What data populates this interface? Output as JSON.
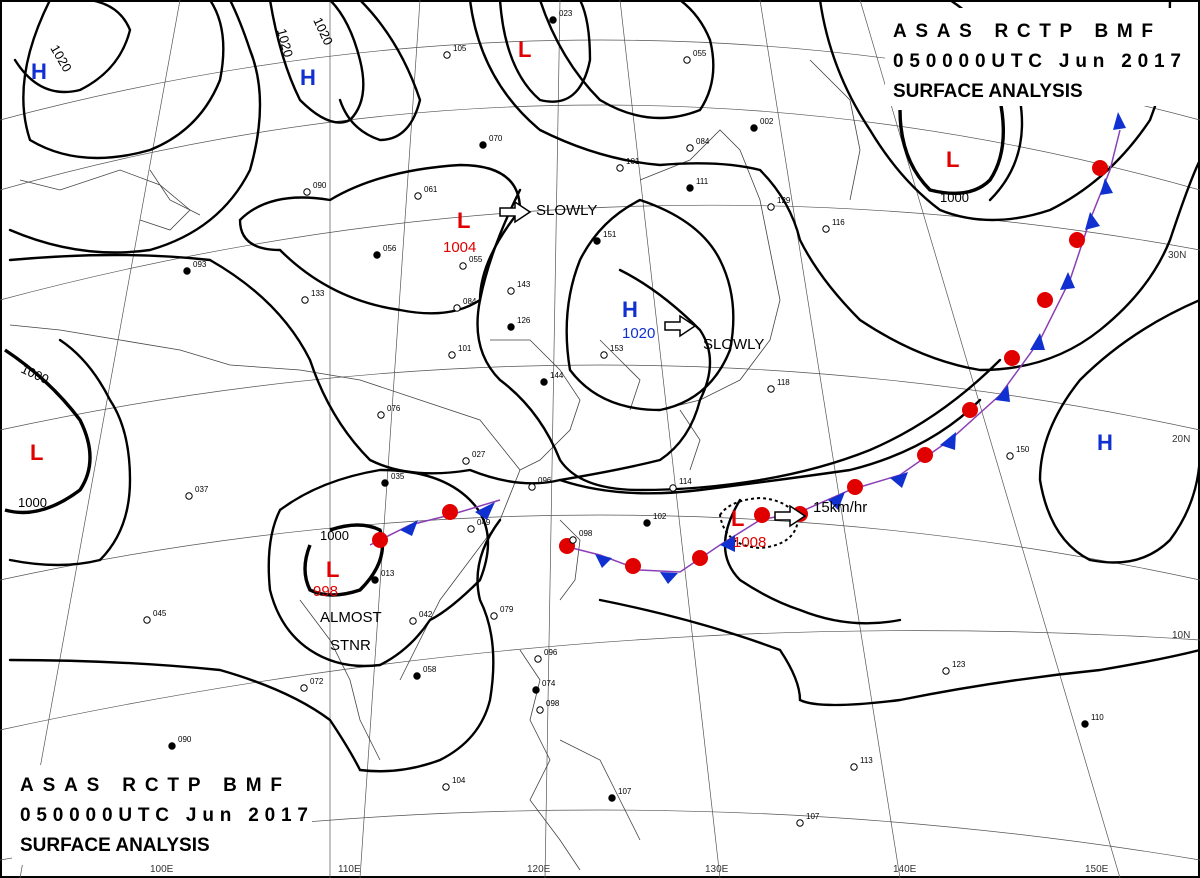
{
  "header_top": {
    "line1": "ASAS RCTP BMF",
    "line2": "050000UTC Jun 2017",
    "line3": "SURFACE ANALYSIS"
  },
  "header_bottom": {
    "line1": "ASAS RCTP BMF",
    "line2": "050000UTC Jun 2017",
    "line3": "SURFACE ANALYSIS"
  },
  "colors": {
    "low": "#e00000",
    "high": "#1030d0",
    "warm_front": "#e00000",
    "cold_front": "#1030d0"
  },
  "isobar_labels": [
    "1020",
    "1020",
    "1020",
    "1000",
    "1000",
    "1000",
    "1000"
  ],
  "lows": [
    {
      "symbol": "L",
      "pressure": ""
    },
    {
      "symbol": "L",
      "pressure": "1004"
    },
    {
      "symbol": "L",
      "pressure": ""
    },
    {
      "symbol": "L",
      "pressure": ""
    },
    {
      "symbol": "L",
      "pressure": "998"
    },
    {
      "symbol": "L",
      "pressure": "1008"
    }
  ],
  "highs": [
    {
      "symbol": "H",
      "pressure": ""
    },
    {
      "symbol": "H",
      "pressure": ""
    },
    {
      "symbol": "H",
      "pressure": "1020"
    },
    {
      "symbol": "H",
      "pressure": ""
    }
  ],
  "movement_notes": [
    "SLOWLY",
    "SLOWLY",
    "15km/hr"
  ],
  "stationary_note": {
    "line1": "ALMOST",
    "line2": "STNR"
  },
  "lat_ticks": [
    "30N",
    "20N",
    "10N"
  ],
  "lon_ticks": [
    "100E",
    "110E",
    "120E",
    "130E",
    "140E",
    "150E"
  ],
  "stations": [
    "023",
    "105",
    "055",
    "002",
    "084",
    "101",
    "111",
    "129",
    "116",
    "070",
    "061",
    "090",
    "056",
    "055",
    "084",
    "126",
    "101",
    "133",
    "093",
    "076",
    "027",
    "035",
    "096",
    "114",
    "102",
    "098",
    "049",
    "013",
    "042",
    "079",
    "058",
    "072",
    "096",
    "074",
    "098",
    "104",
    "107",
    "123",
    "150",
    "110",
    "113",
    "107",
    "090",
    "045",
    "037",
    "151",
    "153",
    "143",
    "144",
    "118"
  ]
}
